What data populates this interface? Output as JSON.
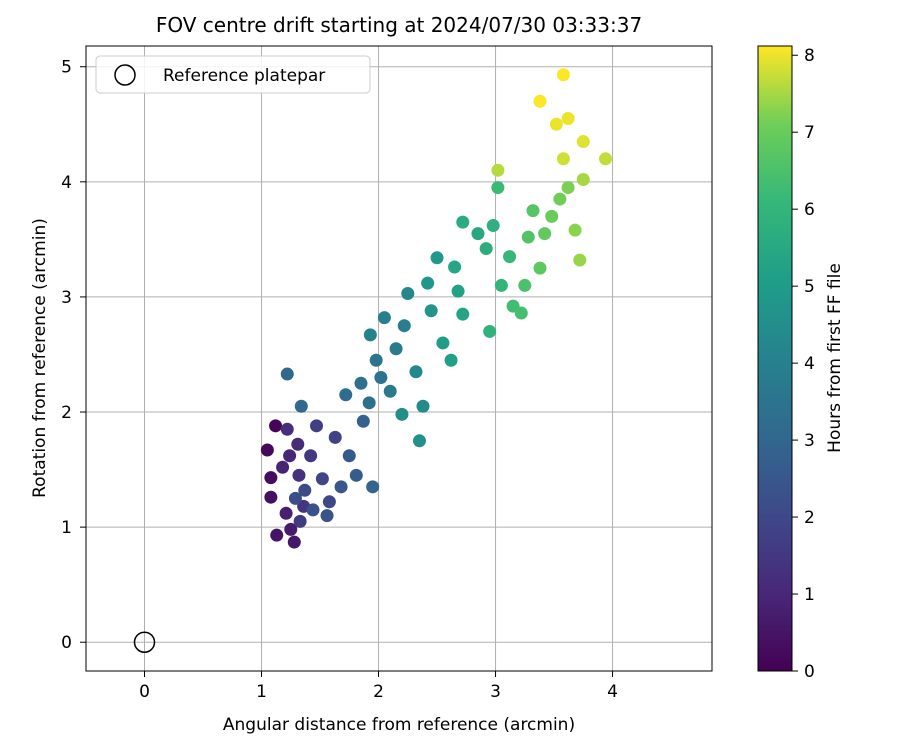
{
  "chart_data": {
    "type": "scatter",
    "title": "FOV centre drift starting at 2024/07/30 03:33:37",
    "xlabel": "Angular distance from reference (arcmin)",
    "ylabel": "Rotation from reference (arcmin)",
    "xlim": [
      -0.5,
      4.85
    ],
    "ylim": [
      -0.25,
      5.18
    ],
    "xticks": [
      0,
      1,
      2,
      3,
      4
    ],
    "yticks": [
      0,
      1,
      2,
      3,
      4,
      5
    ],
    "grid": true,
    "legend": {
      "placement": "upper-left",
      "entries": [
        "Reference platepar"
      ]
    },
    "reference_point": {
      "label": "Reference platepar",
      "x": 0,
      "y": 0
    },
    "colorbar": {
      "label": "Hours from first FF file",
      "colormap": "viridis",
      "range": [
        0,
        8.12
      ],
      "ticks": [
        0,
        1,
        2,
        3,
        4,
        5,
        6,
        7,
        8
      ]
    },
    "series": [
      {
        "marker": "filled-circle",
        "points": [
          {
            "x": 1.12,
            "y": 1.88,
            "h": 0.1
          },
          {
            "x": 1.05,
            "y": 1.67,
            "h": 0.2
          },
          {
            "x": 1.08,
            "y": 1.43,
            "h": 0.3
          },
          {
            "x": 1.08,
            "y": 1.26,
            "h": 0.4
          },
          {
            "x": 1.13,
            "y": 0.93,
            "h": 0.5
          },
          {
            "x": 1.28,
            "y": 0.87,
            "h": 0.6
          },
          {
            "x": 1.25,
            "y": 0.98,
            "h": 0.7
          },
          {
            "x": 1.21,
            "y": 1.12,
            "h": 0.8
          },
          {
            "x": 1.18,
            "y": 1.52,
            "h": 0.9
          },
          {
            "x": 1.24,
            "y": 1.62,
            "h": 1.0
          },
          {
            "x": 1.31,
            "y": 1.72,
            "h": 1.1
          },
          {
            "x": 1.22,
            "y": 1.85,
            "h": 1.2
          },
          {
            "x": 1.32,
            "y": 1.45,
            "h": 1.3
          },
          {
            "x": 1.36,
            "y": 1.18,
            "h": 1.4
          },
          {
            "x": 1.42,
            "y": 1.62,
            "h": 1.5
          },
          {
            "x": 1.33,
            "y": 1.05,
            "h": 1.6
          },
          {
            "x": 1.47,
            "y": 1.88,
            "h": 1.7
          },
          {
            "x": 1.63,
            "y": 1.78,
            "h": 1.8
          },
          {
            "x": 1.52,
            "y": 1.42,
            "h": 1.9
          },
          {
            "x": 1.58,
            "y": 1.22,
            "h": 2.0
          },
          {
            "x": 1.37,
            "y": 1.32,
            "h": 2.1
          },
          {
            "x": 1.29,
            "y": 1.25,
            "h": 2.2
          },
          {
            "x": 1.44,
            "y": 1.15,
            "h": 2.3
          },
          {
            "x": 1.56,
            "y": 1.1,
            "h": 2.4
          },
          {
            "x": 1.68,
            "y": 1.35,
            "h": 2.5
          },
          {
            "x": 1.75,
            "y": 1.62,
            "h": 2.6
          },
          {
            "x": 1.81,
            "y": 1.45,
            "h": 2.7
          },
          {
            "x": 1.87,
            "y": 1.92,
            "h": 2.8
          },
          {
            "x": 1.95,
            "y": 1.35,
            "h": 2.9
          },
          {
            "x": 1.34,
            "y": 2.05,
            "h": 3.0
          },
          {
            "x": 1.22,
            "y": 2.33,
            "h": 3.1
          },
          {
            "x": 1.72,
            "y": 2.15,
            "h": 3.2
          },
          {
            "x": 1.92,
            "y": 2.08,
            "h": 3.3
          },
          {
            "x": 1.85,
            "y": 2.25,
            "h": 3.4
          },
          {
            "x": 2.02,
            "y": 2.3,
            "h": 3.5
          },
          {
            "x": 1.98,
            "y": 2.45,
            "h": 3.6
          },
          {
            "x": 2.1,
            "y": 2.18,
            "h": 3.7
          },
          {
            "x": 2.15,
            "y": 2.55,
            "h": 3.8
          },
          {
            "x": 2.22,
            "y": 2.75,
            "h": 3.9
          },
          {
            "x": 2.05,
            "y": 2.82,
            "h": 4.0
          },
          {
            "x": 1.93,
            "y": 2.67,
            "h": 4.1
          },
          {
            "x": 2.25,
            "y": 3.03,
            "h": 4.2
          },
          {
            "x": 2.32,
            "y": 2.35,
            "h": 4.3
          },
          {
            "x": 2.38,
            "y": 2.05,
            "h": 4.4
          },
          {
            "x": 2.2,
            "y": 1.98,
            "h": 4.5
          },
          {
            "x": 2.35,
            "y": 1.75,
            "h": 4.6
          },
          {
            "x": 2.45,
            "y": 2.88,
            "h": 4.7
          },
          {
            "x": 2.42,
            "y": 3.12,
            "h": 4.8
          },
          {
            "x": 2.5,
            "y": 3.34,
            "h": 4.9
          },
          {
            "x": 2.55,
            "y": 2.6,
            "h": 5.0
          },
          {
            "x": 2.62,
            "y": 2.45,
            "h": 5.1
          },
          {
            "x": 2.68,
            "y": 3.05,
            "h": 5.2
          },
          {
            "x": 2.72,
            "y": 2.85,
            "h": 5.3
          },
          {
            "x": 2.65,
            "y": 3.26,
            "h": 5.4
          },
          {
            "x": 2.85,
            "y": 3.55,
            "h": 5.5
          },
          {
            "x": 2.72,
            "y": 3.65,
            "h": 5.6
          },
          {
            "x": 2.92,
            "y": 3.42,
            "h": 5.7
          },
          {
            "x": 2.98,
            "y": 3.62,
            "h": 5.8
          },
          {
            "x": 2.95,
            "y": 2.7,
            "h": 5.9
          },
          {
            "x": 3.05,
            "y": 3.1,
            "h": 6.0
          },
          {
            "x": 3.12,
            "y": 3.35,
            "h": 6.1
          },
          {
            "x": 3.02,
            "y": 3.95,
            "h": 6.2
          },
          {
            "x": 3.15,
            "y": 2.92,
            "h": 6.3
          },
          {
            "x": 3.22,
            "y": 2.86,
            "h": 6.4
          },
          {
            "x": 3.25,
            "y": 3.1,
            "h": 6.5
          },
          {
            "x": 3.28,
            "y": 3.52,
            "h": 6.6
          },
          {
            "x": 3.32,
            "y": 3.75,
            "h": 6.7
          },
          {
            "x": 3.38,
            "y": 3.25,
            "h": 6.8
          },
          {
            "x": 3.42,
            "y": 3.55,
            "h": 6.9
          },
          {
            "x": 3.48,
            "y": 3.7,
            "h": 7.0
          },
          {
            "x": 3.55,
            "y": 3.85,
            "h": 7.1
          },
          {
            "x": 3.62,
            "y": 3.95,
            "h": 7.2
          },
          {
            "x": 3.68,
            "y": 3.58,
            "h": 7.3
          },
          {
            "x": 3.72,
            "y": 3.32,
            "h": 7.4
          },
          {
            "x": 3.75,
            "y": 4.02,
            "h": 7.5
          },
          {
            "x": 3.02,
            "y": 4.1,
            "h": 7.6
          },
          {
            "x": 3.94,
            "y": 4.2,
            "h": 7.7
          },
          {
            "x": 3.58,
            "y": 4.2,
            "h": 7.8
          },
          {
            "x": 3.75,
            "y": 4.35,
            "h": 7.9
          },
          {
            "x": 3.52,
            "y": 4.5,
            "h": 8.0
          },
          {
            "x": 3.62,
            "y": 4.55,
            "h": 8.0
          },
          {
            "x": 3.38,
            "y": 4.7,
            "h": 8.1
          },
          {
            "x": 3.58,
            "y": 4.93,
            "h": 8.1
          }
        ]
      }
    ]
  }
}
